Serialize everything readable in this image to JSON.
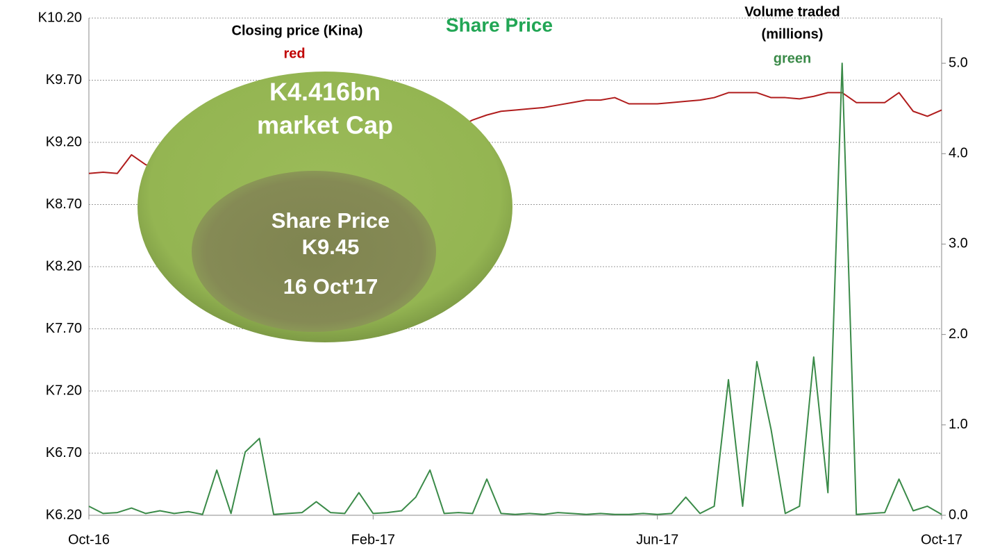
{
  "chart_data": {
    "type": "line",
    "title": "Share Price",
    "annotations": [
      "Closing price (Kina)",
      "red",
      "Volume traded",
      "(millions)",
      "green",
      "K4.416bn",
      "market Cap",
      "Share Price",
      "K9.45",
      "16 Oct'17"
    ],
    "categories": [
      "Oct-16",
      null,
      null,
      null,
      null,
      null,
      null,
      null,
      null,
      null,
      null,
      null,
      null,
      null,
      null,
      null,
      null,
      null,
      null,
      null,
      "Feb-17",
      null,
      null,
      null,
      null,
      null,
      null,
      null,
      null,
      null,
      null,
      null,
      null,
      null,
      null,
      null,
      null,
      null,
      null,
      null,
      "Jun-17",
      null,
      null,
      null,
      null,
      null,
      null,
      null,
      null,
      null,
      null,
      null,
      null,
      null,
      null,
      null,
      null,
      null,
      null,
      null,
      "Oct-17"
    ],
    "series": [
      {
        "name": "Closing price (Kina)",
        "color": "#b01c1c",
        "values": [
          8.95,
          8.96,
          8.95,
          9.1,
          9.02,
          9.0,
          9.0,
          9.01,
          9.0,
          9.01,
          9.01,
          9.0,
          9.01,
          9.01,
          9.01,
          9.02,
          9.2,
          9.02,
          9.02,
          9.05,
          9.03,
          9.03,
          9.03,
          9.03,
          9.3,
          9.3,
          9.32,
          9.38,
          9.42,
          9.45,
          9.46,
          9.47,
          9.48,
          9.5,
          9.52,
          9.54,
          9.54,
          9.56,
          9.51,
          9.51,
          9.51,
          9.52,
          9.53,
          9.54,
          9.56,
          9.6,
          9.6,
          9.6,
          9.56,
          9.56,
          9.55,
          9.57,
          9.6,
          9.6,
          9.52,
          9.52,
          9.52,
          9.6,
          9.45,
          9.41,
          9.46
        ]
      },
      {
        "name": "Volume traded (millions)",
        "color": "#3a8a48",
        "axis": "y2",
        "values": [
          0.1,
          0.02,
          0.03,
          0.08,
          0.02,
          0.05,
          0.02,
          0.04,
          0.01,
          0.5,
          0.02,
          0.7,
          0.85,
          0.01,
          0.02,
          0.03,
          0.15,
          0.03,
          0.02,
          0.25,
          0.02,
          0.03,
          0.05,
          0.2,
          0.5,
          0.02,
          0.03,
          0.02,
          0.4,
          0.02,
          0.01,
          0.02,
          0.01,
          0.03,
          0.02,
          0.01,
          0.02,
          0.01,
          0.01,
          0.02,
          0.01,
          0.02,
          0.2,
          0.02,
          0.1,
          1.5,
          0.1,
          1.7,
          0.95,
          0.02,
          0.1,
          1.75,
          0.25,
          5.0,
          0.01,
          0.02,
          0.03,
          0.4,
          0.05,
          0.1,
          0.01
        ]
      }
    ],
    "ylim": [
      6.2,
      10.2
    ],
    "yticks": [
      {
        "value": 6.2,
        "label": "K6.20"
      },
      {
        "value": 6.7,
        "label": "K6.70"
      },
      {
        "value": 7.2,
        "label": "K7.20"
      },
      {
        "value": 7.7,
        "label": "K7.70"
      },
      {
        "value": 8.2,
        "label": "K8.20"
      },
      {
        "value": 8.7,
        "label": "K8.70"
      },
      {
        "value": 9.2,
        "label": "K9.20"
      },
      {
        "value": 9.7,
        "label": "K9.70"
      },
      {
        "value": 10.2,
        "label": "K10.20"
      }
    ],
    "y2lim": [
      0,
      5.5
    ],
    "y2ticks": [
      {
        "value": 0,
        "label": "0.0"
      },
      {
        "value": 1,
        "label": "1.0"
      },
      {
        "value": 2,
        "label": "2.0"
      },
      {
        "value": 3,
        "label": "3.0"
      },
      {
        "value": 4,
        "label": "4.0"
      },
      {
        "value": 5,
        "label": "5.0"
      }
    ],
    "grid": true
  }
}
